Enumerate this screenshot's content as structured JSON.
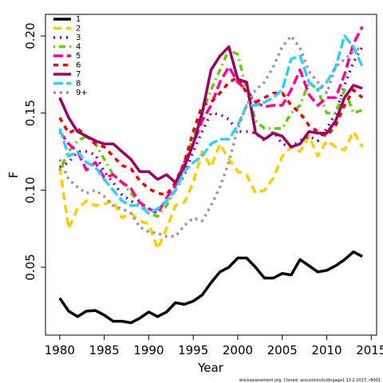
{
  "chart_data": {
    "type": "line",
    "xlabel": "Year",
    "ylabel": "F",
    "footnote": "stockassessment.org, Cloned: acousticincludingage1 13 2 2017, r8001",
    "xlim": [
      1978.4,
      2015.6
    ],
    "ylim": [
      0.006,
      0.214
    ],
    "xticks": [
      1980,
      1985,
      1990,
      1995,
      2000,
      2005,
      2010,
      2015
    ],
    "yticks": [
      0.05,
      {
        "value": 0.1,
        "label": "0.10"
      },
      0.15,
      {
        "value": 0.2,
        "label": "0.20"
      }
    ],
    "legend": "upper left",
    "x": [
      1980,
      1981,
      1982,
      1983,
      1984,
      1985,
      1986,
      1987,
      1988,
      1989,
      1990,
      1991,
      1992,
      1993,
      1994,
      1995,
      1996,
      1997,
      1998,
      1999,
      2000,
      2001,
      2002,
      2003,
      2004,
      2005,
      2006,
      2007,
      2008,
      2009,
      2010,
      2011,
      2012,
      2013,
      2014
    ],
    "series": [
      {
        "name": "1",
        "color": "#000000",
        "values": [
          0.03,
          0.0216,
          0.018,
          0.0216,
          0.022,
          0.019,
          0.015,
          0.015,
          0.014,
          0.017,
          0.021,
          0.018,
          0.021,
          0.027,
          0.026,
          0.028,
          0.032,
          0.04,
          0.047,
          0.05,
          0.056,
          0.056,
          0.05,
          0.043,
          0.043,
          0.046,
          0.045,
          0.055,
          0.051,
          0.047,
          0.048,
          0.051,
          0.055,
          0.06,
          0.057
        ]
      },
      {
        "name": "2",
        "color": "#ffcc00",
        "values": [
          0.115,
          0.075,
          0.088,
          0.093,
          0.09,
          0.091,
          0.093,
          0.082,
          0.085,
          0.08,
          0.078,
          0.062,
          0.075,
          0.09,
          0.092,
          0.105,
          0.125,
          0.115,
          0.13,
          0.12,
          0.112,
          0.11,
          0.098,
          0.1,
          0.108,
          0.122,
          0.128,
          0.125,
          0.135,
          0.122,
          0.132,
          0.128,
          0.126,
          0.138,
          0.128
        ]
      },
      {
        "name": "3",
        "color": "#7b0099",
        "values": [
          0.115,
          0.118,
          0.125,
          0.125,
          0.123,
          0.112,
          0.105,
          0.097,
          0.093,
          0.09,
          0.085,
          0.087,
          0.093,
          0.1,
          0.11,
          0.125,
          0.138,
          0.15,
          0.149,
          0.146,
          0.138,
          0.138,
          0.137,
          0.132,
          0.138,
          0.13,
          0.128,
          0.132,
          0.135,
          0.132,
          0.14,
          0.15,
          0.168,
          0.183,
          0.193
        ]
      },
      {
        "name": "4",
        "color": "#66cc00",
        "values": [
          0.113,
          0.125,
          0.132,
          0.135,
          0.13,
          0.12,
          0.11,
          0.105,
          0.098,
          0.092,
          0.085,
          0.083,
          0.09,
          0.1,
          0.115,
          0.135,
          0.15,
          0.165,
          0.178,
          0.191,
          0.188,
          0.165,
          0.145,
          0.14,
          0.14,
          0.14,
          0.15,
          0.155,
          0.17,
          0.165,
          0.15,
          0.15,
          0.165,
          0.15,
          0.152
        ]
      },
      {
        "name": "5",
        "color": "#ff0099",
        "values": [
          0.138,
          0.13,
          0.125,
          0.113,
          0.118,
          0.108,
          0.11,
          0.105,
          0.101,
          0.092,
          0.088,
          0.085,
          0.095,
          0.103,
          0.118,
          0.13,
          0.145,
          0.155,
          0.17,
          0.18,
          0.17,
          0.165,
          0.157,
          0.154,
          0.155,
          0.155,
          0.165,
          0.178,
          0.162,
          0.155,
          0.16,
          0.16,
          0.175,
          0.195,
          0.206
        ]
      },
      {
        "name": "6",
        "color": "#ee0000",
        "values": [
          0.147,
          0.137,
          0.14,
          0.135,
          0.13,
          0.128,
          0.122,
          0.116,
          0.114,
          0.106,
          0.101,
          0.098,
          0.097,
          0.105,
          0.118,
          0.138,
          0.155,
          0.157,
          0.163,
          0.17,
          0.173,
          0.163,
          0.157,
          0.16,
          0.163,
          0.163,
          0.155,
          0.15,
          0.142,
          0.138,
          0.135,
          0.142,
          0.155,
          0.165,
          0.16
        ]
      },
      {
        "name": "7",
        "color": "#990066",
        "values": [
          0.16,
          0.147,
          0.138,
          0.135,
          0.132,
          0.13,
          0.13,
          0.125,
          0.12,
          0.112,
          0.112,
          0.107,
          0.11,
          0.105,
          0.115,
          0.13,
          0.15,
          0.178,
          0.187,
          0.193,
          0.172,
          0.17,
          0.137,
          0.133,
          0.137,
          0.135,
          0.128,
          0.13,
          0.138,
          0.137,
          0.137,
          0.145,
          0.16,
          0.168,
          0.166
        ]
      },
      {
        "name": "8",
        "color": "#33ccff",
        "values": [
          0.14,
          0.122,
          0.125,
          0.118,
          0.115,
          0.107,
          0.1,
          0.093,
          0.09,
          0.09,
          0.085,
          0.088,
          0.093,
          0.1,
          0.112,
          0.118,
          0.122,
          0.13,
          0.133,
          0.133,
          0.142,
          0.155,
          0.155,
          0.157,
          0.16,
          0.165,
          0.185,
          0.187,
          0.17,
          0.165,
          0.17,
          0.18,
          0.2,
          0.193,
          0.18
        ]
      },
      {
        "name": "9+",
        "color": "#999999",
        "values": [
          0.12,
          0.107,
          0.102,
          0.098,
          0.1,
          0.096,
          0.09,
          0.088,
          0.085,
          0.076,
          0.073,
          0.072,
          0.07,
          0.07,
          0.077,
          0.082,
          0.08,
          0.09,
          0.102,
          0.118,
          0.14,
          0.155,
          0.165,
          0.17,
          0.18,
          0.193,
          0.2,
          0.192,
          0.177,
          0.17,
          0.163,
          0.18,
          0.185,
          0.19,
          0.193
        ]
      }
    ]
  }
}
